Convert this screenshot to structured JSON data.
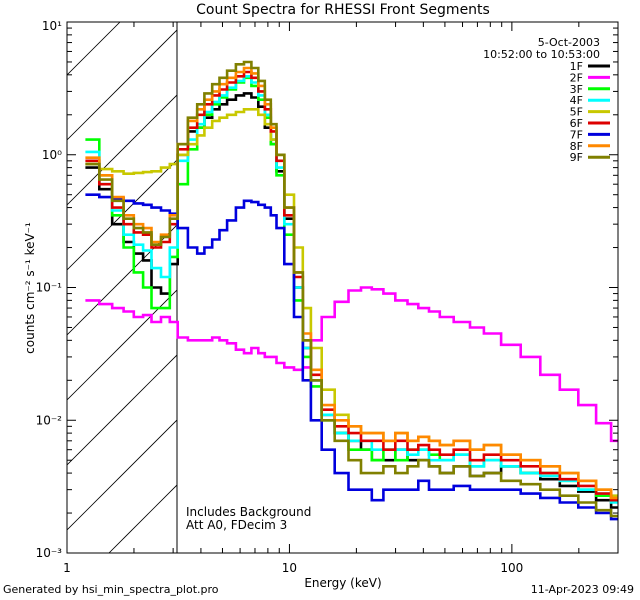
{
  "footer": {
    "generated_by": "Generated by  hsi_min_spectra_plot.pro",
    "timestamp": "11-Apr-2023 09:49"
  },
  "chart_data": {
    "type": "line",
    "title": "Count Spectra for RHESSI Front Segments",
    "xlabel": "Energy (keV)",
    "ylabel": "counts cm⁻² s⁻¹ keV⁻¹",
    "xscale": "log",
    "yscale": "log",
    "xlim": [
      1,
      300
    ],
    "ylim": [
      0.001,
      10
    ],
    "x_tick_labels": [
      "1",
      "10",
      "100"
    ],
    "y_tick_labels": [
      "10⁻³",
      "10⁻²",
      "10⁻¹",
      "10⁰",
      "10¹"
    ],
    "date": "5-Oct-2003",
    "time_range": "10:52:00 to 10:53:00",
    "annotations": [
      "Includes Background",
      "Att A0, FDecim 3"
    ],
    "shaded_region": {
      "x": [
        1,
        3
      ],
      "style": "hatched",
      "meaning": "below energy threshold"
    },
    "legend_position": "top-right",
    "energies": [
      1.3,
      1.5,
      1.7,
      1.9,
      2.1,
      2.3,
      2.5,
      2.8,
      3.0,
      3.3,
      3.7,
      4.0,
      4.3,
      4.7,
      5.0,
      5.5,
      6.0,
      6.5,
      7.0,
      7.5,
      8.0,
      8.5,
      9.0,
      10.0,
      11.0,
      12.0,
      13.0,
      15.0,
      17.0,
      20.0,
      22.0,
      25.0,
      28.0,
      32.0,
      36.0,
      40.0,
      45.0,
      50.0,
      60.0,
      70.0,
      80.0,
      100.0,
      120.0,
      150.0,
      180.0,
      220.0,
      260.0,
      300.0
    ],
    "series": [
      {
        "name": "1F",
        "color": "#000000",
        "values": [
          0.8,
          0.55,
          0.3,
          0.22,
          0.18,
          0.16,
          0.1,
          0.09,
          0.15,
          1.0,
          1.5,
          1.6,
          1.9,
          2.2,
          2.4,
          2.6,
          2.8,
          2.9,
          2.7,
          2.3,
          1.6,
          1.2,
          0.75,
          0.33,
          0.1,
          0.035,
          0.02,
          0.011,
          0.008,
          0.007,
          0.006,
          0.005,
          0.005,
          0.006,
          0.005,
          0.005,
          0.0045,
          0.004,
          0.0045,
          0.0038,
          0.004,
          0.0045,
          0.004,
          0.0036,
          0.0032,
          0.0029,
          0.0025,
          0.0022
        ]
      },
      {
        "name": "2F",
        "color": "#ff00ff",
        "values": [
          0.08,
          0.075,
          0.07,
          0.066,
          0.06,
          0.062,
          0.055,
          0.06,
          0.055,
          0.042,
          0.04,
          0.04,
          0.04,
          0.042,
          0.04,
          0.038,
          0.034,
          0.032,
          0.035,
          0.032,
          0.03,
          0.03,
          0.027,
          0.025,
          0.024,
          0.025,
          0.04,
          0.06,
          0.078,
          0.095,
          0.1,
          0.097,
          0.09,
          0.08,
          0.075,
          0.07,
          0.066,
          0.06,
          0.055,
          0.05,
          0.045,
          0.037,
          0.03,
          0.022,
          0.017,
          0.013,
          0.0095,
          0.007
        ]
      },
      {
        "name": "3F",
        "color": "#00ff00",
        "values": [
          1.3,
          0.7,
          0.35,
          0.2,
          0.13,
          0.1,
          0.07,
          0.07,
          0.17,
          0.6,
          1.1,
          1.6,
          2.0,
          2.4,
          2.7,
          3.1,
          3.5,
          3.8,
          3.3,
          2.6,
          1.9,
          1.2,
          0.7,
          0.25,
          0.08,
          0.03,
          0.018,
          0.01,
          0.008,
          0.006,
          0.006,
          0.005,
          0.006,
          0.005,
          0.006,
          0.006,
          0.0055,
          0.005,
          0.0055,
          0.0045,
          0.005,
          0.0045,
          0.004,
          0.004,
          0.0035,
          0.003,
          0.0027,
          0.0025
        ]
      },
      {
        "name": "4F",
        "color": "#00ffff",
        "values": [
          1.05,
          0.6,
          0.38,
          0.25,
          0.21,
          0.19,
          0.14,
          0.12,
          0.2,
          0.9,
          1.3,
          1.7,
          2.1,
          2.5,
          2.8,
          3.2,
          3.6,
          3.9,
          3.5,
          2.8,
          2.0,
          1.3,
          0.8,
          0.3,
          0.1,
          0.035,
          0.02,
          0.011,
          0.008,
          0.007,
          0.007,
          0.006,
          0.006,
          0.006,
          0.0055,
          0.006,
          0.005,
          0.005,
          0.0055,
          0.0045,
          0.005,
          0.0045,
          0.004,
          0.0038,
          0.0035,
          0.003,
          0.0028,
          0.0024
        ]
      },
      {
        "name": "5F",
        "color": "#c8c800",
        "values": [
          0.85,
          0.78,
          0.75,
          0.72,
          0.73,
          0.74,
          0.75,
          0.8,
          0.85,
          1.0,
          1.2,
          1.4,
          1.6,
          1.8,
          1.9,
          2.0,
          2.1,
          2.2,
          2.2,
          2.0,
          1.7,
          1.3,
          1.0,
          0.5,
          0.2,
          0.07,
          0.035,
          0.017,
          0.011,
          0.009,
          0.008,
          0.008,
          0.007,
          0.008,
          0.007,
          0.0075,
          0.007,
          0.0065,
          0.007,
          0.006,
          0.0065,
          0.0055,
          0.005,
          0.0045,
          0.004,
          0.0035,
          0.003,
          0.0027
        ]
      },
      {
        "name": "6F",
        "color": "#dd0000",
        "values": [
          0.9,
          0.6,
          0.4,
          0.3,
          0.26,
          0.25,
          0.2,
          0.22,
          0.3,
          1.1,
          1.6,
          2.0,
          2.4,
          2.8,
          3.1,
          3.5,
          3.9,
          4.2,
          3.8,
          3.0,
          2.2,
          1.5,
          0.9,
          0.35,
          0.12,
          0.04,
          0.022,
          0.012,
          0.009,
          0.008,
          0.007,
          0.007,
          0.006,
          0.007,
          0.006,
          0.0065,
          0.006,
          0.0055,
          0.006,
          0.005,
          0.0055,
          0.005,
          0.0045,
          0.004,
          0.0036,
          0.0032,
          0.0028,
          0.0025
        ]
      },
      {
        "name": "7F",
        "color": "#0000dd",
        "values": [
          0.5,
          0.48,
          0.47,
          0.45,
          0.43,
          0.42,
          0.4,
          0.38,
          0.36,
          0.28,
          0.2,
          0.18,
          0.2,
          0.23,
          0.27,
          0.32,
          0.4,
          0.45,
          0.44,
          0.42,
          0.4,
          0.35,
          0.28,
          0.15,
          0.06,
          0.02,
          0.01,
          0.006,
          0.004,
          0.003,
          0.003,
          0.0025,
          0.003,
          0.003,
          0.003,
          0.0035,
          0.003,
          0.003,
          0.0032,
          0.003,
          0.003,
          0.003,
          0.0028,
          0.0026,
          0.0024,
          0.0022,
          0.002,
          0.0018
        ]
      },
      {
        "name": "8F",
        "color": "#ff8800",
        "values": [
          0.95,
          0.7,
          0.48,
          0.35,
          0.3,
          0.28,
          0.22,
          0.25,
          0.35,
          1.2,
          1.8,
          2.2,
          2.6,
          3.0,
          3.4,
          3.8,
          4.2,
          4.5,
          4.1,
          3.3,
          2.4,
          1.6,
          1.0,
          0.4,
          0.13,
          0.045,
          0.024,
          0.013,
          0.01,
          0.009,
          0.008,
          0.008,
          0.007,
          0.008,
          0.007,
          0.0075,
          0.007,
          0.0065,
          0.007,
          0.006,
          0.0065,
          0.0055,
          0.005,
          0.0045,
          0.004,
          0.0035,
          0.003,
          0.0026
        ]
      },
      {
        "name": "9F",
        "color": "#808000",
        "values": [
          0.85,
          0.65,
          0.45,
          0.33,
          0.28,
          0.26,
          0.21,
          0.24,
          0.33,
          1.2,
          1.9,
          2.4,
          2.9,
          3.4,
          3.8,
          4.3,
          4.8,
          5.0,
          4.5,
          3.6,
          2.6,
          1.7,
          1.0,
          0.4,
          0.13,
          0.04,
          0.02,
          0.01,
          0.007,
          0.005,
          0.004,
          0.004,
          0.0045,
          0.004,
          0.0045,
          0.005,
          0.0045,
          0.004,
          0.0045,
          0.0038,
          0.004,
          0.0035,
          0.0033,
          0.003,
          0.0027,
          0.0024,
          0.0021,
          0.0019
        ]
      }
    ]
  }
}
